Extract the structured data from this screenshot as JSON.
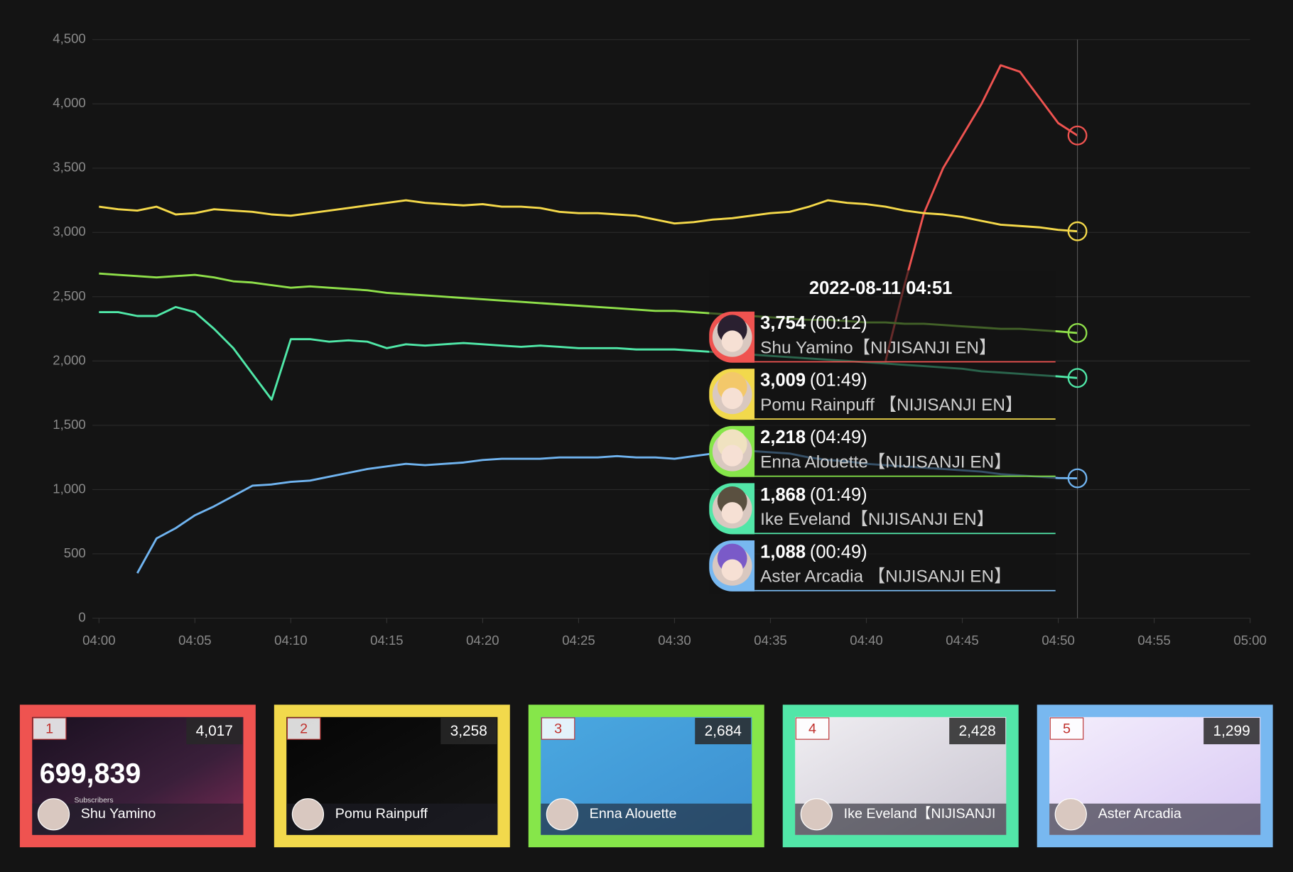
{
  "chart_data": {
    "type": "line",
    "x": [
      "04:00",
      "04:01",
      "04:02",
      "04:03",
      "04:04",
      "04:05",
      "04:06",
      "04:07",
      "04:08",
      "04:09",
      "04:10",
      "04:11",
      "04:12",
      "04:13",
      "04:14",
      "04:15",
      "04:16",
      "04:17",
      "04:18",
      "04:19",
      "04:20",
      "04:21",
      "04:22",
      "04:23",
      "04:24",
      "04:25",
      "04:26",
      "04:27",
      "04:28",
      "04:29",
      "04:30",
      "04:31",
      "04:32",
      "04:33",
      "04:34",
      "04:35",
      "04:36",
      "04:37",
      "04:38",
      "04:39",
      "04:40",
      "04:41",
      "04:42",
      "04:43",
      "04:44",
      "04:45",
      "04:46",
      "04:47",
      "04:48",
      "04:49",
      "04:50",
      "04:51"
    ],
    "series": [
      {
        "name": "Shu Yamino【NIJISANJI EN】",
        "color": "#ef5350",
        "values": [
          null,
          null,
          null,
          null,
          null,
          null,
          null,
          null,
          null,
          null,
          null,
          null,
          null,
          null,
          null,
          null,
          null,
          null,
          null,
          null,
          null,
          null,
          null,
          null,
          null,
          null,
          null,
          null,
          null,
          null,
          null,
          null,
          null,
          null,
          null,
          null,
          null,
          null,
          null,
          null,
          null,
          2000,
          2600,
          3150,
          3500,
          3750,
          4000,
          4300,
          4250,
          4050,
          3850,
          3754
        ]
      },
      {
        "name": "Pomu Rainpuff 【NIJISANJI EN】",
        "color": "#f5d94a",
        "values": [
          3200,
          3180,
          3170,
          3200,
          3140,
          3150,
          3180,
          3170,
          3160,
          3140,
          3130,
          3150,
          3170,
          3190,
          3210,
          3230,
          3250,
          3230,
          3220,
          3210,
          3220,
          3200,
          3200,
          3190,
          3160,
          3150,
          3150,
          3140,
          3130,
          3100,
          3070,
          3080,
          3100,
          3110,
          3130,
          3150,
          3160,
          3200,
          3250,
          3230,
          3220,
          3200,
          3170,
          3150,
          3140,
          3120,
          3090,
          3060,
          3050,
          3040,
          3020,
          3009
        ]
      },
      {
        "name": "Enna Alouette【NIJISANJI EN】",
        "color": "#8fe04a",
        "values": [
          2680,
          2670,
          2660,
          2650,
          2660,
          2670,
          2650,
          2620,
          2610,
          2590,
          2570,
          2580,
          2570,
          2560,
          2550,
          2530,
          2520,
          2510,
          2500,
          2490,
          2480,
          2470,
          2460,
          2450,
          2440,
          2430,
          2420,
          2410,
          2400,
          2390,
          2390,
          2380,
          2370,
          2360,
          2350,
          2340,
          2330,
          2320,
          2320,
          2310,
          2300,
          2300,
          2290,
          2290,
          2280,
          2270,
          2260,
          2250,
          2250,
          2240,
          2230,
          2218
        ]
      },
      {
        "name": "Ike Eveland【NIJISANJI EN】",
        "color": "#50e8a8",
        "values": [
          2380,
          2380,
          2350,
          2350,
          2420,
          2380,
          2250,
          2100,
          1900,
          1700,
          2170,
          2170,
          2150,
          2160,
          2150,
          2100,
          2130,
          2120,
          2130,
          2140,
          2130,
          2120,
          2110,
          2120,
          2110,
          2100,
          2100,
          2100,
          2090,
          2090,
          2090,
          2080,
          2070,
          2060,
          2050,
          2040,
          2030,
          2020,
          2010,
          2000,
          1990,
          1980,
          1970,
          1960,
          1950,
          1940,
          1920,
          1910,
          1900,
          1890,
          1880,
          1868
        ]
      },
      {
        "name": "Aster Arcadia 【NIJISANJI EN】",
        "color": "#70b4f0",
        "values": [
          null,
          null,
          350,
          620,
          700,
          800,
          870,
          950,
          1030,
          1040,
          1060,
          1070,
          1100,
          1130,
          1160,
          1180,
          1200,
          1190,
          1200,
          1210,
          1230,
          1240,
          1240,
          1240,
          1250,
          1250,
          1250,
          1260,
          1250,
          1250,
          1240,
          1260,
          1280,
          1290,
          1300,
          1290,
          1280,
          1250,
          1230,
          1220,
          1200,
          1190,
          1180,
          1170,
          1160,
          1150,
          1140,
          1120,
          1110,
          1100,
          1090,
          1088
        ]
      }
    ],
    "xlim": [
      "04:00",
      "05:00"
    ],
    "xticks": [
      "04:00",
      "04:05",
      "04:10",
      "04:15",
      "04:20",
      "04:25",
      "04:30",
      "04:35",
      "04:40",
      "04:45",
      "04:50",
      "04:55",
      "05:00"
    ],
    "ylim": [
      0,
      4500
    ],
    "yticks": [
      0,
      500,
      {
        "value": 1000,
        "label": "1,000"
      },
      {
        "value": 1500,
        "label": "1,500"
      },
      {
        "value": 2000,
        "label": "2,000"
      },
      {
        "value": 2500,
        "label": "2,500"
      },
      {
        "value": 3000,
        "label": "3,000"
      },
      {
        "value": 3500,
        "label": "3,500"
      },
      {
        "value": 4000,
        "label": "4,000"
      },
      {
        "value": 4500,
        "label": "4,500"
      }
    ],
    "grid": true
  },
  "tooltip": {
    "title": "2022-08-11 04:51",
    "entries": [
      {
        "value": "3,754",
        "duration": "(00:12)",
        "name": "Shu Yamino【NIJISANJI EN】",
        "color": "#ef5350"
      },
      {
        "value": "3,009",
        "duration": "(01:49)",
        "name": "Pomu Rainpuff 【NIJISANJI EN】",
        "color": "#f2d94c"
      },
      {
        "value": "2,218",
        "duration": "(04:49)",
        "name": "Enna Alouette【NIJISANJI EN】",
        "color": "#86e64a"
      },
      {
        "value": "1,868",
        "duration": "(01:49)",
        "name": "Ike Eveland【NIJISANJI EN】",
        "color": "#52e6a8"
      },
      {
        "value": "1,088",
        "duration": "(00:49)",
        "name": "Aster Arcadia 【NIJISANJI EN】",
        "color": "#78b8f0"
      }
    ]
  },
  "cards": [
    {
      "rank": "1",
      "viewers": "4,017",
      "name": "Shu Yamino",
      "color": "#ef5350",
      "subscribers": "699,839",
      "subscribers_label": "Subscribers"
    },
    {
      "rank": "2",
      "viewers": "3,258",
      "name": "Pomu Rainpuff",
      "color": "#f2d94c"
    },
    {
      "rank": "3",
      "viewers": "2,684",
      "name": "Enna Alouette",
      "color": "#86e64a"
    },
    {
      "rank": "4",
      "viewers": "2,428",
      "name": "Ike Eveland【NIJISANJI",
      "color": "#52e6a8"
    },
    {
      "rank": "5",
      "viewers": "1,299",
      "name": "Aster Arcadia",
      "color": "#78b8f0"
    }
  ]
}
